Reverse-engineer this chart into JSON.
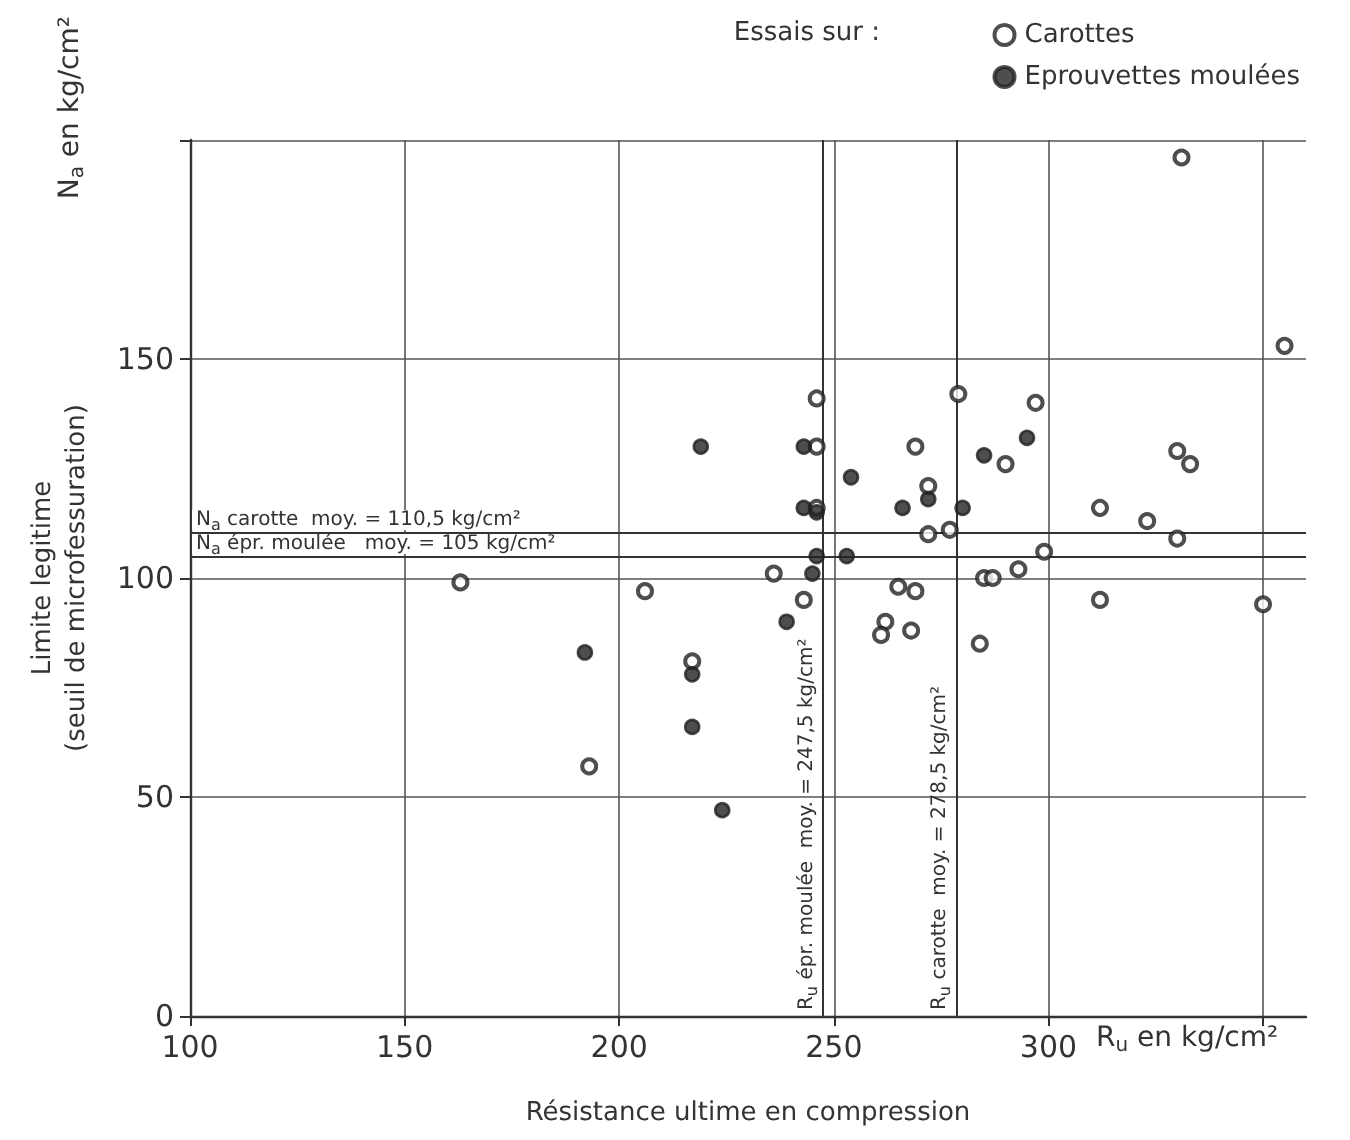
{
  "chart_data": {
    "type": "scatter",
    "xlabel": "Résistance ultime en compression",
    "ylabel": "Limite legitime\n(seuil de microfessuration)",
    "legend_title": "Essais sur :",
    "annotations": [
      "R$_{u}$ en kg/cm²",
      "N$_{a}$ en kg/cm²"
    ],
    "xlim": [
      100,
      360
    ],
    "xticks": [
      100,
      150,
      200,
      250,
      300,
      {
        "value": 350,
        "label": null
      }
    ],
    "ylim": [
      0,
      200
    ],
    "yticks": [
      0,
      50,
      100,
      150,
      {
        "value": 200,
        "label": null
      }
    ],
    "grid": true,
    "legend": "top right",
    "marker": "circle",
    "ref_lines": [
      {
        "axis": "y",
        "value": 110.5,
        "label": "N$_{a}$ carotte  moy. = 110,5 kg/cm²"
      },
      {
        "axis": "y",
        "value": 105,
        "label": "N$_{a}$ épr. moulée   moy. = 105 kg/cm²"
      },
      {
        "axis": "x",
        "value": 247.5,
        "label": "R$_{u}$ épr. moulée  moy. = 247,5 kg/cm²"
      },
      {
        "axis": "x",
        "value": 278.5,
        "label": "R$_{u}$ carotte  moy. = 278,5 kg/cm²"
      }
    ],
    "series": [
      {
        "name": "Carottes",
        "color": "#222222",
        "x": [
          246,
          246,
          246,
          269,
          272,
          279,
          297,
          290,
          272,
          277,
          299,
          293,
          285,
          287,
          312,
          323,
          330,
          333,
          330,
          312,
          350,
          236,
          243,
          265,
          269,
          262,
          261,
          268,
          284,
          163,
          206,
          217,
          193,
          331,
          355
        ],
        "values": [
          141,
          130,
          116,
          130,
          121,
          142,
          140,
          126,
          110,
          111,
          106,
          102,
          100,
          100,
          116,
          113,
          129,
          126,
          109,
          95,
          94,
          101,
          95,
          98,
          97,
          90,
          87,
          88,
          85,
          99,
          97,
          81,
          57,
          196,
          153
        ]
      },
      {
        "name": "Eprouvettes moulées",
        "color": "#222222",
        "x": [
          243,
          254,
          243,
          246,
          266,
          272,
          280,
          285,
          295,
          246,
          253,
          245,
          239,
          219,
          192,
          217,
          217,
          224
        ],
        "values": [
          130,
          123,
          116,
          115,
          116,
          118,
          116,
          128,
          132,
          105,
          105,
          101,
          90,
          130,
          83,
          78,
          66,
          47
        ]
      }
    ]
  }
}
